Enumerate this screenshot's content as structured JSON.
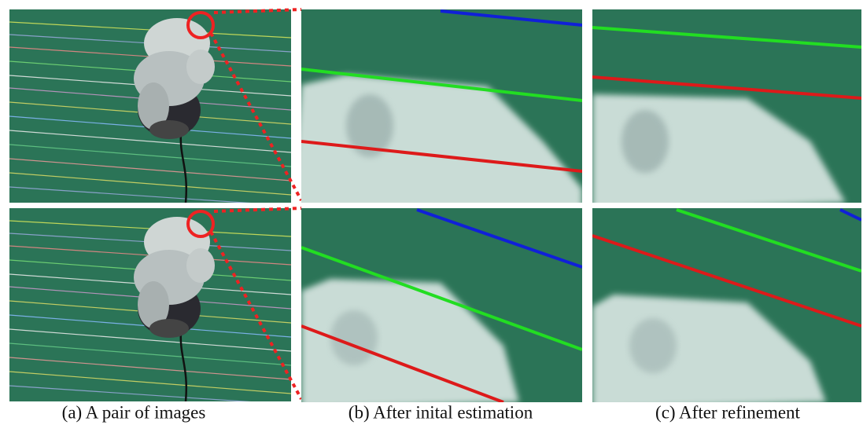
{
  "figure": {
    "captions": [
      "(a) A pair of images",
      "(b) After inital estimation",
      "(c) After refinement"
    ]
  }
}
